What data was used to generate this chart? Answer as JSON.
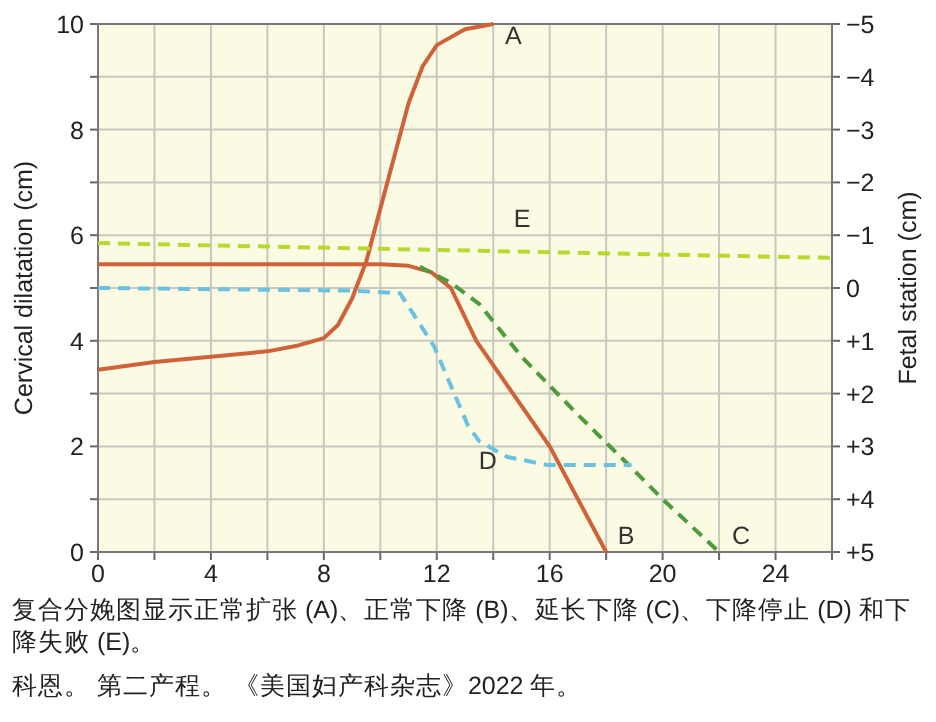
{
  "chart_data": {
    "type": "line",
    "xlabel": null,
    "ylabel": "Cervical dilatation (cm)",
    "y2label": "Fetal station (cm)",
    "xlim": [
      0,
      26
    ],
    "xticks": [
      0,
      {
        "value": 2,
        "label": null
      },
      4,
      {
        "value": 6,
        "label": null
      },
      8,
      {
        "value": 10,
        "label": null
      },
      12,
      {
        "value": 14,
        "label": null
      },
      16,
      {
        "value": 18,
        "label": null
      },
      20,
      {
        "value": 22,
        "label": null
      },
      24,
      {
        "value": 26,
        "label": null
      }
    ],
    "ylim": [
      0,
      10
    ],
    "yticks": [
      0,
      {
        "value": 1,
        "label": null
      },
      2,
      {
        "value": 3,
        "label": null
      },
      4,
      {
        "value": 5,
        "label": null
      },
      6,
      {
        "value": 7,
        "label": null
      },
      8,
      {
        "value": 9,
        "label": null
      },
      10
    ],
    "y2lim": [
      5,
      -5
    ],
    "y2ticks": [
      {
        "value": -5,
        "label": "−5"
      },
      {
        "value": -4,
        "label": "−4"
      },
      {
        "value": -3,
        "label": "−3"
      },
      {
        "value": -2,
        "label": "−2"
      },
      {
        "value": -1,
        "label": "−1"
      },
      0,
      {
        "value": 1,
        "label": "+1"
      },
      {
        "value": 2,
        "label": "+2"
      },
      {
        "value": 3,
        "label": "+3"
      },
      {
        "value": 4,
        "label": "+4"
      },
      {
        "value": 5,
        "label": "+5"
      }
    ],
    "grid": true,
    "series": [
      {
        "name": "A",
        "color": "#d0623a",
        "line_style": "solid",
        "x": [
          0,
          2,
          4,
          6,
          7,
          8,
          8.5,
          9,
          9.5,
          10,
          10.5,
          11,
          11.5,
          12,
          13,
          14
        ],
        "values": [
          3.45,
          3.6,
          3.7,
          3.8,
          3.9,
          4.05,
          4.3,
          4.8,
          5.5,
          6.5,
          7.5,
          8.5,
          9.2,
          9.6,
          9.9,
          10
        ]
      },
      {
        "name": "B",
        "color": "#d0623a",
        "line_style": "solid",
        "axis": "y2",
        "x": [
          0,
          10,
          11,
          11.8,
          12.5,
          13.4,
          16,
          18
        ],
        "values": [
          -0.45,
          -0.45,
          -0.42,
          -0.3,
          0,
          1,
          3,
          5
        ]
      },
      {
        "name": "C",
        "color": "#4f9a3a",
        "line_style": "dashed",
        "axis": "y2",
        "x": [
          11.4,
          12.5,
          13.5,
          15,
          17,
          18.7,
          20,
          22
        ],
        "values": [
          -0.4,
          -0.1,
          0.3,
          1.3,
          2.4,
          3.3,
          4,
          5
        ]
      },
      {
        "name": "D",
        "color": "#6cc0e0",
        "line_style": "dashed",
        "axis": "y2",
        "x": [
          0,
          9,
          10.7,
          11.9,
          13.1,
          13.5,
          14.5,
          15.9,
          18.9
        ],
        "values": [
          0,
          0.05,
          0.1,
          1.1,
          2.6,
          2.9,
          3.2,
          3.35,
          3.35
        ]
      },
      {
        "name": "E",
        "color": "#b8d830",
        "line_style": "dashed",
        "axis": "y2",
        "x": [
          0,
          26
        ],
        "values": [
          -0.85,
          -0.57
        ]
      }
    ],
    "annotations": [
      "复合分娩图显示正常扩张 (A)、正常下降 (B)、延长下降 (C)、下降停止 (D) 和下降失败 (E)。",
      "科恩。 第二产程。 《美国妇产科杂志》2022 年。"
    ]
  }
}
